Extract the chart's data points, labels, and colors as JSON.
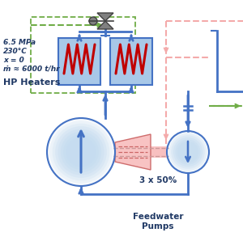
{
  "bg_color": "#ffffff",
  "blue_pipe": "#4472C4",
  "blue_light": "#A8C8E8",
  "blue_light2": "#C5DCF0",
  "red_dashed": "#F4AAAA",
  "green_dashed": "#70AD47",
  "red_coil": "#C00000",
  "red_turbine_face": "#F4AAAA",
  "red_turbine_edge": "#CC6666",
  "gray_valve": "#808080",
  "gray_valve_dark": "#404040",
  "text_color": "#1F3864",
  "annotations": {
    "pressure": "6.5 MPa",
    "temp": "230°C",
    "quality": "x = 0",
    "massflow": "ṁ ≈ 6000 t/hr",
    "component": "HP Heaters",
    "pump_label": "3 x 50%",
    "pump_name": "Feedwater\nPumps"
  },
  "figsize": [
    3.0,
    2.98
  ],
  "dpi": 100
}
